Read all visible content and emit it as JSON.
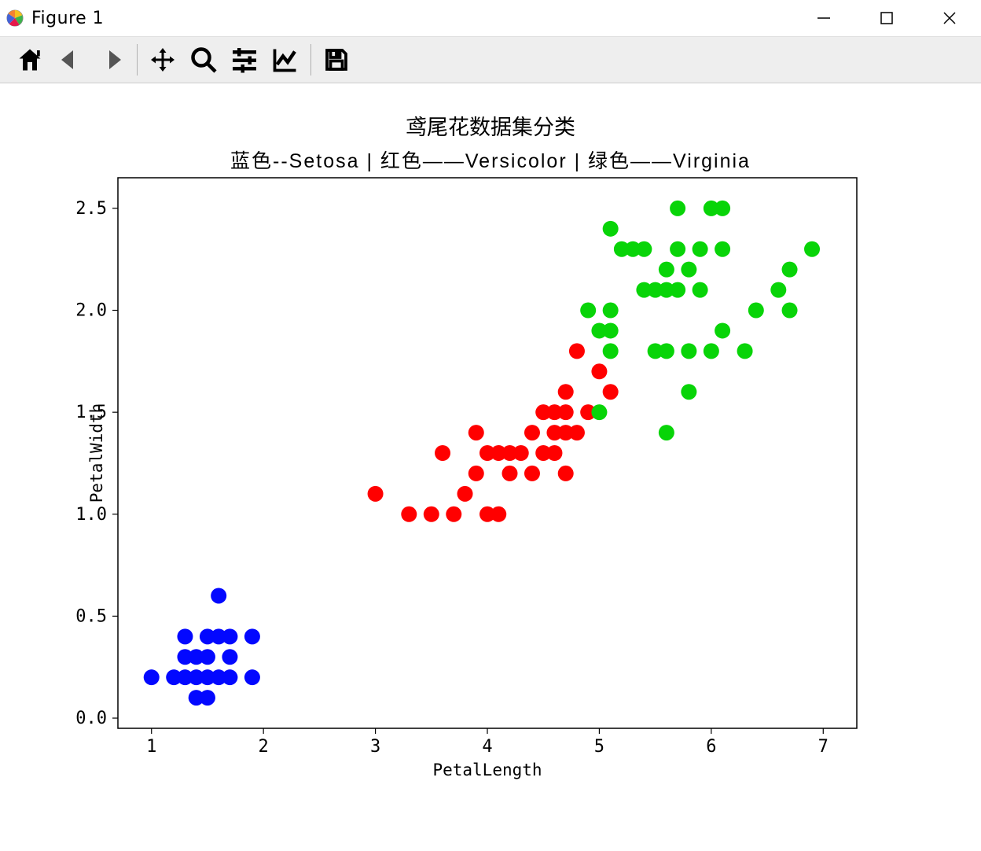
{
  "window": {
    "title": "Figure 1"
  },
  "toolbar": {
    "icons": [
      "home",
      "back",
      "forward",
      "pan",
      "zoom",
      "configure",
      "edit",
      "save"
    ]
  },
  "chart": {
    "type": "scatter",
    "title": "鸢尾花数据集分类",
    "subtitle": "蓝色--Setosa | 红色——Versicolor  | 绿色——Virginia",
    "xlabel": "PetalLength",
    "ylabel": "PetalWidth",
    "xlim": [
      0.7,
      7.3
    ],
    "ylim": [
      -0.05,
      2.65
    ],
    "xticks": [
      1,
      2,
      3,
      4,
      5,
      6,
      7
    ],
    "yticks": [
      0.0,
      0.5,
      1.0,
      1.5,
      2.0,
      2.5
    ],
    "title_fontsize": 27,
    "label_fontsize": 21,
    "tick_fontsize": 22,
    "background_color": "#ffffff",
    "border_color": "#000000",
    "marker_radius": 10,
    "colors": {
      "setosa": "#0000ff",
      "versicolor": "#ff0000",
      "virginia": "#00c800"
    },
    "series": [
      {
        "name": "setosa",
        "color": "#0308ff",
        "points": [
          [
            1.0,
            0.2
          ],
          [
            1.2,
            0.2
          ],
          [
            1.3,
            0.2
          ],
          [
            1.3,
            0.3
          ],
          [
            1.3,
            0.4
          ],
          [
            1.4,
            0.1
          ],
          [
            1.4,
            0.2
          ],
          [
            1.4,
            0.3
          ],
          [
            1.5,
            0.1
          ],
          [
            1.5,
            0.2
          ],
          [
            1.5,
            0.3
          ],
          [
            1.5,
            0.4
          ],
          [
            1.6,
            0.2
          ],
          [
            1.6,
            0.4
          ],
          [
            1.6,
            0.6
          ],
          [
            1.7,
            0.2
          ],
          [
            1.7,
            0.3
          ],
          [
            1.7,
            0.4
          ],
          [
            1.9,
            0.2
          ],
          [
            1.9,
            0.4
          ]
        ]
      },
      {
        "name": "versicolor",
        "color": "#ff0000",
        "points": [
          [
            3.0,
            1.1
          ],
          [
            3.3,
            1.0
          ],
          [
            3.5,
            1.0
          ],
          [
            3.6,
            1.3
          ],
          [
            3.7,
            1.0
          ],
          [
            3.8,
            1.1
          ],
          [
            3.9,
            1.2
          ],
          [
            3.9,
            1.4
          ],
          [
            4.0,
            1.3
          ],
          [
            4.0,
            1.0
          ],
          [
            4.1,
            1.3
          ],
          [
            4.1,
            1.0
          ],
          [
            4.2,
            1.3
          ],
          [
            4.2,
            1.2
          ],
          [
            4.3,
            1.3
          ],
          [
            4.4,
            1.2
          ],
          [
            4.4,
            1.4
          ],
          [
            4.5,
            1.3
          ],
          [
            4.5,
            1.5
          ],
          [
            4.6,
            1.3
          ],
          [
            4.6,
            1.4
          ],
          [
            4.6,
            1.5
          ],
          [
            4.7,
            1.4
          ],
          [
            4.7,
            1.2
          ],
          [
            4.7,
            1.5
          ],
          [
            4.7,
            1.6
          ],
          [
            4.8,
            1.4
          ],
          [
            4.8,
            1.8
          ],
          [
            4.9,
            1.5
          ],
          [
            5.0,
            1.7
          ],
          [
            5.1,
            1.6
          ]
        ]
      },
      {
        "name": "virginia",
        "color": "#08d408",
        "points": [
          [
            4.9,
            2.0
          ],
          [
            5.0,
            1.5
          ],
          [
            5.0,
            1.9
          ],
          [
            5.1,
            1.8
          ],
          [
            5.1,
            1.9
          ],
          [
            5.1,
            2.0
          ],
          [
            5.1,
            2.4
          ],
          [
            5.2,
            2.3
          ],
          [
            5.3,
            2.3
          ],
          [
            5.4,
            2.1
          ],
          [
            5.4,
            2.3
          ],
          [
            5.5,
            1.8
          ],
          [
            5.5,
            2.1
          ],
          [
            5.6,
            1.4
          ],
          [
            5.6,
            1.8
          ],
          [
            5.6,
            2.1
          ],
          [
            5.6,
            2.2
          ],
          [
            5.7,
            2.1
          ],
          [
            5.7,
            2.3
          ],
          [
            5.7,
            2.5
          ],
          [
            5.8,
            1.6
          ],
          [
            5.8,
            1.8
          ],
          [
            5.8,
            2.2
          ],
          [
            5.9,
            2.1
          ],
          [
            5.9,
            2.3
          ],
          [
            6.0,
            1.8
          ],
          [
            6.0,
            2.5
          ],
          [
            6.1,
            1.9
          ],
          [
            6.1,
            2.3
          ],
          [
            6.1,
            2.5
          ],
          [
            6.3,
            1.8
          ],
          [
            6.4,
            2.0
          ],
          [
            6.6,
            2.1
          ],
          [
            6.7,
            2.0
          ],
          [
            6.7,
            2.2
          ],
          [
            6.9,
            2.3
          ]
        ]
      }
    ]
  }
}
